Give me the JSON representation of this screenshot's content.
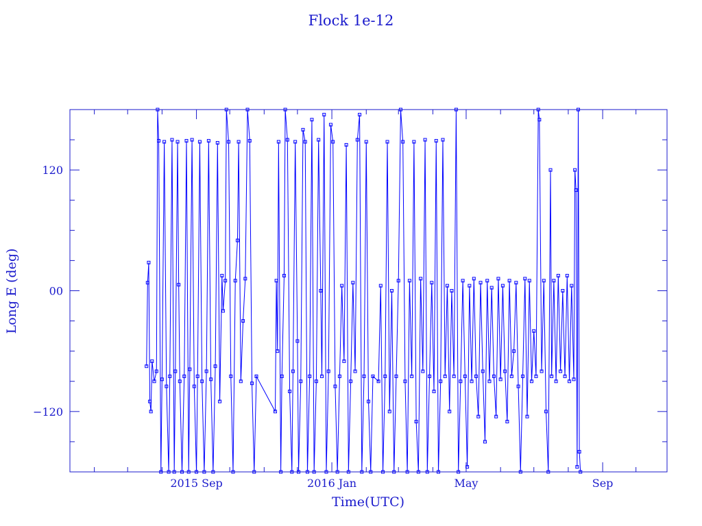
{
  "chart_data": {
    "type": "line",
    "title": "Flock 1e-12",
    "xlabel": "Time(UTC)",
    "ylabel": "Long E (deg)",
    "xlim": [
      "2015-05-10",
      "2016-10-29"
    ],
    "ylim": [
      -180,
      180
    ],
    "grid": false,
    "markers": "open-square",
    "color": "#0000ff",
    "axis_color": "#1a1acc",
    "x_ticks": [
      {
        "date": "2015-09-01",
        "label": "2015 Sep"
      },
      {
        "date": "2016-01-01",
        "label": "2016 Jan"
      },
      {
        "date": "2016-05-01",
        "label": "May"
      },
      {
        "date": "2016-09-01",
        "label": "Sep"
      }
    ],
    "x_minor_ticks": [
      "2015-06-01",
      "2015-07-01",
      "2015-08-01",
      "2015-10-01",
      "2015-11-01",
      "2015-12-01",
      "2016-02-01",
      "2016-03-01",
      "2016-04-01",
      "2016-06-01",
      "2016-07-01",
      "2016-08-01",
      "2016-10-01"
    ],
    "y_ticks": [
      {
        "value": 120,
        "label": "120"
      },
      {
        "value": 0,
        "label": "00"
      },
      {
        "value": -120,
        "label": "-120"
      }
    ],
    "y_minor_ticks": [
      -150,
      -90,
      -60,
      -30,
      30,
      60,
      90,
      150
    ],
    "series": [
      {
        "x": [
          "2015-07-18",
          "2015-07-19",
          "2015-07-20",
          "2015-07-21",
          "2015-07-22",
          "2015-07-23",
          "2015-07-25",
          "2015-07-27",
          "2015-07-28",
          "2015-07-29",
          "2015-07-31",
          "2015-08-01",
          "2015-08-03",
          "2015-08-05",
          "2015-08-07",
          "2015-08-08",
          "2015-08-10",
          "2015-08-12",
          "2015-08-13",
          "2015-08-15",
          "2015-08-16",
          "2015-08-17",
          "2015-08-19",
          "2015-08-21",
          "2015-08-23",
          "2015-08-25",
          "2015-08-26",
          "2015-08-28",
          "2015-08-30",
          "2015-09-01",
          "2015-09-02",
          "2015-09-04",
          "2015-09-06",
          "2015-09-08",
          "2015-09-10",
          "2015-09-12",
          "2015-09-14",
          "2015-09-16",
          "2015-09-18",
          "2015-09-20",
          "2015-09-22",
          "2015-09-24",
          "2015-09-25",
          "2015-09-27",
          "2015-09-28",
          "2015-09-30",
          "2015-10-02",
          "2015-10-04",
          "2015-10-06",
          "2015-10-08",
          "2015-10-09",
          "2015-10-11",
          "2015-10-13",
          "2015-10-15",
          "2015-10-17",
          "2015-10-19",
          "2015-10-21",
          "2015-10-23",
          "2015-10-25",
          "2015-11-11",
          "2015-11-12",
          "2015-11-13",
          "2015-11-14",
          "2015-11-16",
          "2015-11-17",
          "2015-11-19",
          "2015-11-20",
          "2015-11-22",
          "2015-11-24",
          "2015-11-26",
          "2015-11-27",
          "2015-11-29",
          "2015-12-01",
          "2015-12-02",
          "2015-12-04",
          "2015-12-06",
          "2015-12-08",
          "2015-12-10",
          "2015-12-12",
          "2015-12-14",
          "2015-12-16",
          "2015-12-18",
          "2015-12-20",
          "2015-12-22",
          "2015-12-23",
          "2015-12-25",
          "2015-12-27",
          "2015-12-29",
          "2015-12-31",
          "2016-01-02",
          "2016-01-04",
          "2016-01-06",
          "2016-01-08",
          "2016-01-10",
          "2016-01-12",
          "2016-01-14",
          "2016-01-16",
          "2016-01-18",
          "2016-01-20",
          "2016-01-22",
          "2016-01-24",
          "2016-01-26",
          "2016-01-28",
          "2016-01-30",
          "2016-02-01",
          "2016-02-03",
          "2016-02-05",
          "2016-02-07",
          "2016-02-12",
          "2016-02-14",
          "2016-02-16",
          "2016-02-18",
          "2016-02-20",
          "2016-02-22",
          "2016-02-24",
          "2016-02-26",
          "2016-02-28",
          "2016-03-01",
          "2016-03-03",
          "2016-03-05",
          "2016-03-07",
          "2016-03-09",
          "2016-03-11",
          "2016-03-13",
          "2016-03-15",
          "2016-03-17",
          "2016-03-19",
          "2016-03-21",
          "2016-03-23",
          "2016-03-25",
          "2016-03-27",
          "2016-03-29",
          "2016-03-31",
          "2016-04-02",
          "2016-04-04",
          "2016-04-06",
          "2016-04-08",
          "2016-04-10",
          "2016-04-12",
          "2016-04-14",
          "2016-04-16",
          "2016-04-18",
          "2016-04-20",
          "2016-04-22",
          "2016-04-24",
          "2016-04-26",
          "2016-04-28",
          "2016-04-30",
          "2016-05-02",
          "2016-05-04",
          "2016-05-06",
          "2016-05-08",
          "2016-05-10",
          "2016-05-12",
          "2016-05-14",
          "2016-05-16",
          "2016-05-18",
          "2016-05-20",
          "2016-05-22",
          "2016-05-24",
          "2016-05-26",
          "2016-05-28",
          "2016-05-30",
          "2016-06-01",
          "2016-06-03",
          "2016-06-05",
          "2016-06-07",
          "2016-06-09",
          "2016-06-11",
          "2016-06-13",
          "2016-06-15",
          "2016-06-17",
          "2016-06-19",
          "2016-06-21",
          "2016-06-23",
          "2016-06-25",
          "2016-06-27",
          "2016-06-29",
          "2016-07-01",
          "2016-07-03",
          "2016-07-05",
          "2016-07-06",
          "2016-07-08",
          "2016-07-10",
          "2016-07-12",
          "2016-07-14",
          "2016-07-16",
          "2016-07-17",
          "2016-07-19",
          "2016-07-21",
          "2016-07-23",
          "2016-07-25",
          "2016-07-27",
          "2016-07-29",
          "2016-07-31",
          "2016-08-02",
          "2016-08-04",
          "2016-08-06",
          "2016-08-07",
          "2016-08-08",
          "2016-08-09",
          "2016-08-10",
          "2016-08-11",
          "2016-08-12"
        ],
        "y": [
          -75,
          8,
          28,
          -110,
          -120,
          -70,
          -90,
          -80,
          180,
          149,
          -180,
          -88,
          148,
          -95,
          -180,
          -85,
          150,
          -180,
          -80,
          148,
          6,
          -90,
          -180,
          -85,
          149,
          -180,
          -78,
          150,
          -95,
          -180,
          -85,
          148,
          -90,
          -180,
          -80,
          149,
          -88,
          -180,
          -75,
          147,
          -110,
          15,
          -20,
          10,
          180,
          148,
          -85,
          -180,
          10,
          50,
          148,
          -90,
          -30,
          12,
          180,
          149,
          -92,
          -180,
          -85,
          -120,
          10,
          -60,
          148,
          -180,
          -85,
          15,
          180,
          150,
          -100,
          -180,
          -80,
          148,
          -50,
          -180,
          -90,
          160,
          148,
          -180,
          -85,
          170,
          -180,
          -90,
          150,
          0,
          -85,
          175,
          -180,
          -80,
          165,
          148,
          -95,
          -180,
          -85,
          5,
          -70,
          145,
          -180,
          -90,
          8,
          -80,
          150,
          175,
          -180,
          -85,
          148,
          -110,
          -180,
          -85,
          -90,
          5,
          -180,
          -85,
          148,
          -120,
          0,
          -180,
          -85,
          10,
          180,
          148,
          -90,
          -180,
          10,
          -85,
          148,
          -130,
          -180,
          12,
          -80,
          150,
          -180,
          -85,
          8,
          -100,
          149,
          -180,
          -90,
          150,
          -85,
          5,
          -120,
          0,
          -85,
          180,
          -180,
          -90,
          10,
          -85,
          -175,
          5,
          -90,
          12,
          -85,
          -125,
          8,
          -80,
          -150,
          10,
          -90,
          3,
          -85,
          -125,
          12,
          -88,
          5,
          -80,
          -130,
          10,
          -85,
          -60,
          8,
          -95,
          -180,
          -85,
          12,
          -125,
          10,
          -90,
          -40,
          -85,
          180,
          170,
          -80,
          10,
          -120,
          -180,
          120,
          -85,
          10,
          -90,
          15,
          -80,
          0,
          -85,
          15,
          -90,
          5,
          -88,
          120,
          100,
          -175,
          180,
          -160,
          -180
        ]
      }
    ]
  }
}
